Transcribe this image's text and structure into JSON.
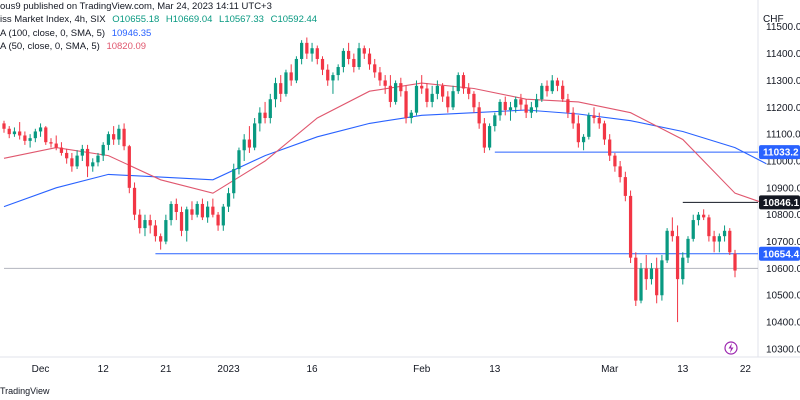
{
  "header": {
    "published_line": "ous9 published on TradingView.com, Mar 24, 2023 14:11 UTC+3",
    "symbol_line": "iss Market Index, 4h, SIX",
    "ohlc": {
      "o": "O10655.18",
      "h": "H10669.04",
      "l": "L10567.33",
      "c": "C10592.44"
    },
    "sma100_label": "A (100, close, 0, SMA, 5)",
    "sma100_value": "10946.35",
    "sma50_label": "A (50, close, 0, SMA, 5)",
    "sma50_value": "10820.09"
  },
  "footer": "TradingView",
  "colors": {
    "up": "#089981",
    "down": "#f23645",
    "sma100": "#2962ff",
    "sma50": "#e0576e",
    "level": "#2962ff"
  },
  "chart_data": {
    "type": "candlestick",
    "currency": "CHF",
    "ylim": [
      10270,
      11540
    ],
    "y_ticks": [
      "11500.00",
      "11400.00",
      "11300.00",
      "11200.00",
      "11100.00",
      "11000.00",
      "10900.00",
      "10800.00",
      "10700.00",
      "10600.00",
      "10500.00",
      "10400.00",
      "10300.00"
    ],
    "x_ticks": [
      {
        "label": "Dec",
        "idx": 7
      },
      {
        "label": "12",
        "idx": 19
      },
      {
        "label": "21",
        "idx": 31
      },
      {
        "label": "2023",
        "idx": 43
      },
      {
        "label": "16",
        "idx": 59
      },
      {
        "label": "Feb",
        "idx": 80
      },
      {
        "label": "13",
        "idx": 94
      },
      {
        "label": "Mar",
        "idx": 116
      },
      {
        "label": "13",
        "idx": 130
      },
      {
        "label": "22",
        "idx": 142
      }
    ],
    "candles": [
      [
        11140,
        11150,
        11105,
        11120
      ],
      [
        11120,
        11130,
        11085,
        11100
      ],
      [
        11100,
        11125,
        11090,
        11110
      ],
      [
        11110,
        11145,
        11080,
        11095
      ],
      [
        11095,
        11110,
        11060,
        11075
      ],
      [
        11075,
        11100,
        11050,
        11085
      ],
      [
        11085,
        11120,
        11070,
        11110
      ],
      [
        11110,
        11140,
        11090,
        11125
      ],
      [
        11125,
        11130,
        11060,
        11070
      ],
      [
        11070,
        11085,
        11050,
        11065
      ],
      [
        11065,
        11095,
        11040,
        11050
      ],
      [
        11050,
        11070,
        11020,
        11030
      ],
      [
        11030,
        11045,
        10990,
        11010
      ],
      [
        11010,
        11030,
        10960,
        10980
      ],
      [
        10980,
        11040,
        10970,
        11020
      ],
      [
        11020,
        11060,
        11000,
        11045
      ],
      [
        11045,
        11060,
        10940,
        10980
      ],
      [
        10980,
        11010,
        10960,
        10995
      ],
      [
        10995,
        11030,
        10980,
        11020
      ],
      [
        11020,
        11070,
        11000,
        11060
      ],
      [
        11060,
        11110,
        11040,
        11100
      ],
      [
        11100,
        11130,
        11060,
        11080
      ],
      [
        11080,
        11135,
        11060,
        11120
      ],
      [
        11120,
        11140,
        11040,
        11055
      ],
      [
        11055,
        11060,
        10880,
        10900
      ],
      [
        10900,
        10920,
        10780,
        10800
      ],
      [
        10800,
        10820,
        10730,
        10750
      ],
      [
        10750,
        10800,
        10720,
        10780
      ],
      [
        10780,
        10800,
        10730,
        10760
      ],
      [
        10760,
        10780,
        10700,
        10720
      ],
      [
        10720,
        10730,
        10670,
        10700
      ],
      [
        10700,
        10800,
        10690,
        10780
      ],
      [
        10780,
        10850,
        10760,
        10840
      ],
      [
        10840,
        10860,
        10780,
        10810
      ],
      [
        10810,
        10830,
        10720,
        10740
      ],
      [
        10740,
        10830,
        10700,
        10820
      ],
      [
        10820,
        10850,
        10780,
        10800
      ],
      [
        10800,
        10850,
        10790,
        10840
      ],
      [
        10840,
        10860,
        10780,
        10790
      ],
      [
        10790,
        10850,
        10770,
        10830
      ],
      [
        10830,
        10860,
        10790,
        10800
      ],
      [
        10800,
        10810,
        10740,
        10760
      ],
      [
        10760,
        10840,
        10740,
        10830
      ],
      [
        10830,
        10900,
        10810,
        10880
      ],
      [
        10880,
        10990,
        10860,
        10970
      ],
      [
        10970,
        11050,
        10950,
        11040
      ],
      [
        11040,
        11100,
        11000,
        11080
      ],
      [
        11080,
        11130,
        11030,
        11050
      ],
      [
        11050,
        11160,
        11040,
        11140
      ],
      [
        11140,
        11200,
        11110,
        11180
      ],
      [
        11180,
        11220,
        11140,
        11160
      ],
      [
        11160,
        11250,
        11140,
        11230
      ],
      [
        11230,
        11310,
        11200,
        11290
      ],
      [
        11290,
        11320,
        11220,
        11250
      ],
      [
        11250,
        11340,
        11240,
        11330
      ],
      [
        11330,
        11360,
        11280,
        11300
      ],
      [
        11300,
        11390,
        11290,
        11380
      ],
      [
        11380,
        11450,
        11360,
        11440
      ],
      [
        11440,
        11460,
        11380,
        11400
      ],
      [
        11400,
        11440,
        11370,
        11420
      ],
      [
        11420,
        11430,
        11360,
        11380
      ],
      [
        11380,
        11390,
        11320,
        11340
      ],
      [
        11340,
        11360,
        11280,
        11300
      ],
      [
        11300,
        11330,
        11250,
        11320
      ],
      [
        11320,
        11360,
        11300,
        11350
      ],
      [
        11350,
        11420,
        11330,
        11410
      ],
      [
        11410,
        11440,
        11360,
        11380
      ],
      [
        11380,
        11400,
        11330,
        11350
      ],
      [
        11350,
        11440,
        11340,
        11420
      ],
      [
        11420,
        11430,
        11380,
        11400
      ],
      [
        11400,
        11420,
        11340,
        11360
      ],
      [
        11360,
        11380,
        11310,
        11330
      ],
      [
        11330,
        11350,
        11280,
        11300
      ],
      [
        11300,
        11320,
        11250,
        11280
      ],
      [
        11280,
        11320,
        11200,
        11220
      ],
      [
        11220,
        11300,
        11210,
        11290
      ],
      [
        11290,
        11310,
        11240,
        11260
      ],
      [
        11260,
        11280,
        11140,
        11160
      ],
      [
        11160,
        11190,
        11140,
        11180
      ],
      [
        11180,
        11300,
        11170,
        11280
      ],
      [
        11280,
        11320,
        11250,
        11270
      ],
      [
        11270,
        11290,
        11200,
        11220
      ],
      [
        11220,
        11280,
        11200,
        11250
      ],
      [
        11250,
        11300,
        11230,
        11280
      ],
      [
        11280,
        11290,
        11220,
        11240
      ],
      [
        11240,
        11260,
        11180,
        11200
      ],
      [
        11200,
        11280,
        11190,
        11260
      ],
      [
        11260,
        11330,
        11250,
        11320
      ],
      [
        11320,
        11330,
        11250,
        11270
      ],
      [
        11270,
        11290,
        11230,
        11250
      ],
      [
        11250,
        11260,
        11180,
        11200
      ],
      [
        11200,
        11220,
        11120,
        11140
      ],
      [
        11140,
        11160,
        11030,
        11050
      ],
      [
        11050,
        11140,
        11040,
        11130
      ],
      [
        11130,
        11180,
        11110,
        11170
      ],
      [
        11170,
        11230,
        11150,
        11220
      ],
      [
        11220,
        11240,
        11170,
        11190
      ],
      [
        11190,
        11220,
        11150,
        11200
      ],
      [
        11200,
        11240,
        11180,
        11230
      ],
      [
        11230,
        11250,
        11190,
        11210
      ],
      [
        11210,
        11230,
        11160,
        11180
      ],
      [
        11180,
        11220,
        11160,
        11200
      ],
      [
        11200,
        11250,
        11180,
        11230
      ],
      [
        11230,
        11290,
        11220,
        11280
      ],
      [
        11280,
        11300,
        11240,
        11260
      ],
      [
        11260,
        11320,
        11250,
        11300
      ],
      [
        11300,
        11310,
        11260,
        11280
      ],
      [
        11280,
        11300,
        11220,
        11230
      ],
      [
        11230,
        11250,
        11160,
        11180
      ],
      [
        11180,
        11200,
        11120,
        11140
      ],
      [
        11140,
        11170,
        11050,
        11070
      ],
      [
        11070,
        11100,
        11040,
        11090
      ],
      [
        11090,
        11180,
        11080,
        11170
      ],
      [
        11170,
        11200,
        11140,
        11160
      ],
      [
        11160,
        11180,
        11120,
        11140
      ],
      [
        11140,
        11150,
        11060,
        11080
      ],
      [
        11080,
        11100,
        11000,
        11020
      ],
      [
        11020,
        11030,
        10960,
        10980
      ],
      [
        10980,
        11000,
        10920,
        10940
      ],
      [
        10940,
        10960,
        10850,
        10870
      ],
      [
        10870,
        10890,
        10620,
        10640
      ],
      [
        10640,
        10660,
        10460,
        10480
      ],
      [
        10480,
        10620,
        10470,
        10600
      ],
      [
        10600,
        10650,
        10520,
        10560
      ],
      [
        10560,
        10620,
        10540,
        10600
      ],
      [
        10600,
        10640,
        10470,
        10500
      ],
      [
        10500,
        10650,
        10480,
        10630
      ],
      [
        10630,
        10750,
        10620,
        10740
      ],
      [
        10740,
        10790,
        10700,
        10720
      ],
      [
        10720,
        10760,
        10400,
        10560
      ],
      [
        10560,
        10660,
        10540,
        10640
      ],
      [
        10640,
        10720,
        10620,
        10710
      ],
      [
        10710,
        10800,
        10700,
        10780
      ],
      [
        10780,
        10810,
        10760,
        10800
      ],
      [
        10800,
        10820,
        10780,
        10790
      ],
      [
        10790,
        10800,
        10700,
        10720
      ],
      [
        10720,
        10740,
        10660,
        10700
      ],
      [
        10700,
        10730,
        10660,
        10720
      ],
      [
        10720,
        10760,
        10700,
        10740
      ],
      [
        10740,
        10750,
        10650,
        10660
      ],
      [
        10655,
        10669,
        10567,
        10592
      ]
    ],
    "series": [
      {
        "name": "SMA 100",
        "color": "#2962ff",
        "points": [
          [
            0,
            10830
          ],
          [
            10,
            10900
          ],
          [
            20,
            10950
          ],
          [
            30,
            10940
          ],
          [
            40,
            10930
          ],
          [
            50,
            11020
          ],
          [
            60,
            11090
          ],
          [
            70,
            11140
          ],
          [
            80,
            11170
          ],
          [
            90,
            11180
          ],
          [
            100,
            11190
          ],
          [
            110,
            11175
          ],
          [
            120,
            11150
          ],
          [
            130,
            11110
          ],
          [
            140,
            11050
          ],
          [
            146,
            10990
          ]
        ]
      },
      {
        "name": "SMA 50",
        "color": "#e0576e",
        "points": [
          [
            0,
            11010
          ],
          [
            10,
            11050
          ],
          [
            20,
            11020
          ],
          [
            30,
            10930
          ],
          [
            40,
            10880
          ],
          [
            50,
            11000
          ],
          [
            60,
            11160
          ],
          [
            70,
            11260
          ],
          [
            80,
            11290
          ],
          [
            90,
            11270
          ],
          [
            100,
            11230
          ],
          [
            110,
            11220
          ],
          [
            120,
            11180
          ],
          [
            130,
            11080
          ],
          [
            140,
            10880
          ],
          [
            146,
            10840
          ]
        ]
      }
    ],
    "levels": [
      {
        "value": 10654.4,
        "label": "10654.4",
        "from_idx": 29,
        "color": "#2962ff",
        "label_bg": "#2962ff"
      },
      {
        "value": 11033.2,
        "label": "11033.2",
        "from_idx": 94,
        "color": "#2962ff",
        "label_bg": "#2962ff"
      },
      {
        "value": 10846.1,
        "label": "10846.1",
        "from_idx": 130,
        "color": "#131722",
        "label_bg": "#131722"
      },
      {
        "value": 10600,
        "label": "",
        "from_idx": 0,
        "color": "#b2b5be",
        "label_bg": ""
      }
    ]
  }
}
